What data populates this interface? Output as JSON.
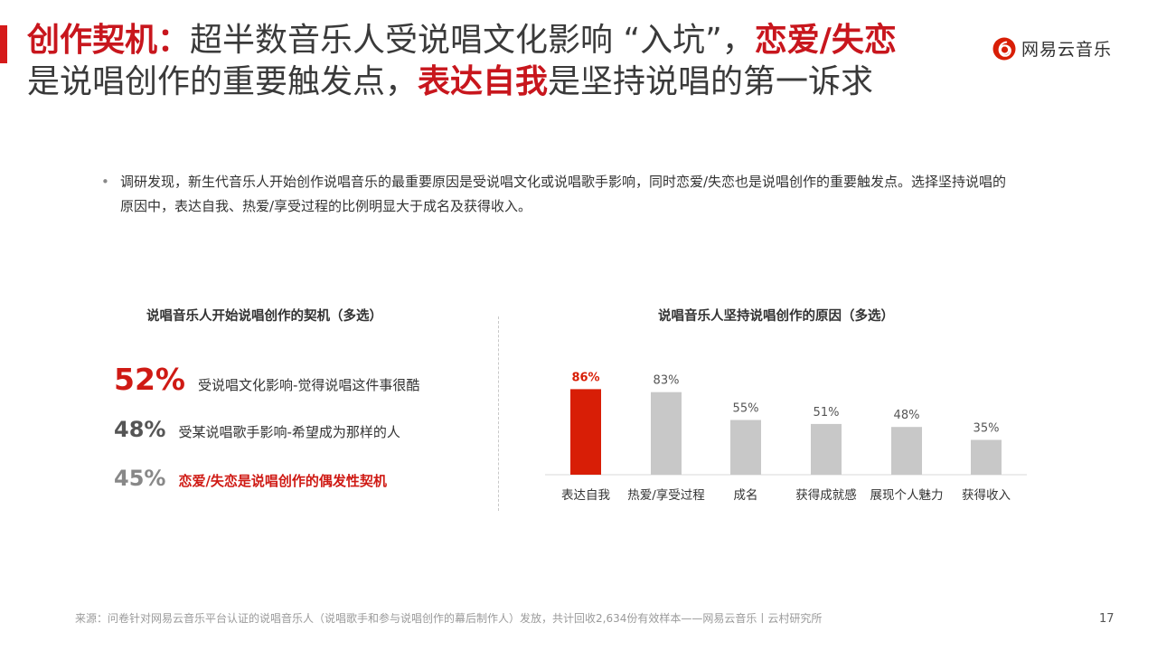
{
  "title": {
    "line1_red1": "创作契机：",
    "line1_plain": "超半数音乐人受说唱文化影响 “入坑”，",
    "line1_red2": "恋爱/失恋",
    "line2_plain1": "是说唱创作的重要触发点，",
    "line2_red": "表达自我",
    "line2_plain2": "是坚持说唱的第一诉求"
  },
  "logo": {
    "text": "网易云音乐"
  },
  "bullet": {
    "marker": "•",
    "text": "调研发现，新生代音乐人开始创作说唱音乐的最重要原因是受说唱文化或说唱歌手影响，同时恋爱/失恋也是说唱创作的重要触发点。选择坚持说唱的原因中，表达自我、热爱/享受过程的比例明显大于成名及获得收入。"
  },
  "left_panel": {
    "title": "说唱音乐人开始说唱创作的契机（多选）",
    "stats": [
      {
        "pct": "52%",
        "label": "受说唱文化影响-觉得说唱这件事很酷"
      },
      {
        "pct": "48%",
        "label": "受某说唱歌手影响-希望成为那样的人"
      },
      {
        "pct": "45%",
        "label": "恋爱/失恋是说唱创作的偶发性契机"
      }
    ]
  },
  "right_panel": {
    "title": "说唱音乐人坚持说唱创作的原因（多选）"
  },
  "chart_data": {
    "type": "bar",
    "title": "说唱音乐人坚持说唱创作的原因（多选）",
    "categories": [
      "表达自我",
      "热爱/享受过程",
      "成名",
      "获得成就感",
      "展现个人魅力",
      "获得收入"
    ],
    "values": [
      86,
      83,
      55,
      51,
      48,
      35
    ],
    "value_labels": [
      "86%",
      "83%",
      "55%",
      "51%",
      "48%",
      "35%"
    ],
    "ylim": [
      0,
      100
    ],
    "grid": false,
    "highlight_index": 0,
    "colors": {
      "highlight": "#d81e06",
      "default": "#c8c8c8"
    }
  },
  "footer": {
    "source": "来源：问卷针对网易云音乐平台认证的说唱音乐人（说唱歌手和参与说唱创作的幕后制作人）发放，共计回收2,634份有效样本——网易云音乐丨云村研究所",
    "page": "17"
  }
}
